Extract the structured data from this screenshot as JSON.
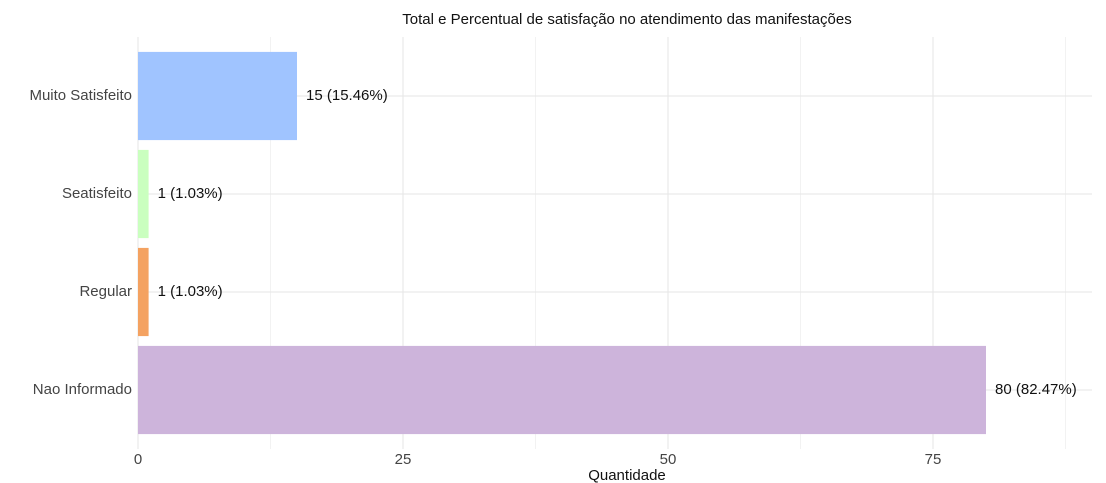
{
  "chart_data": {
    "type": "barh",
    "title": "Total e Percentual de satisfação no atendimento das manifestações",
    "x_label": "Quantidade",
    "categories": [
      "Muito Satisfeito",
      "Seatisfeito",
      "Regular",
      "Nao Informado"
    ],
    "values": [
      15,
      1,
      1,
      80
    ],
    "value_labels": [
      "15 (15.46%)",
      "1 (1.03%)",
      "1 (1.03%)",
      "80 (82.47%)"
    ],
    "colors": [
      "#a0c4ff",
      "#caffbf",
      "#f4a261",
      "#cdb4db"
    ],
    "xlim": [
      0,
      90
    ],
    "xticks": [
      0,
      25,
      50,
      75
    ],
    "minor_xticks": [
      12.5,
      37.5,
      62.5,
      87.5
    ],
    "grid": true
  }
}
